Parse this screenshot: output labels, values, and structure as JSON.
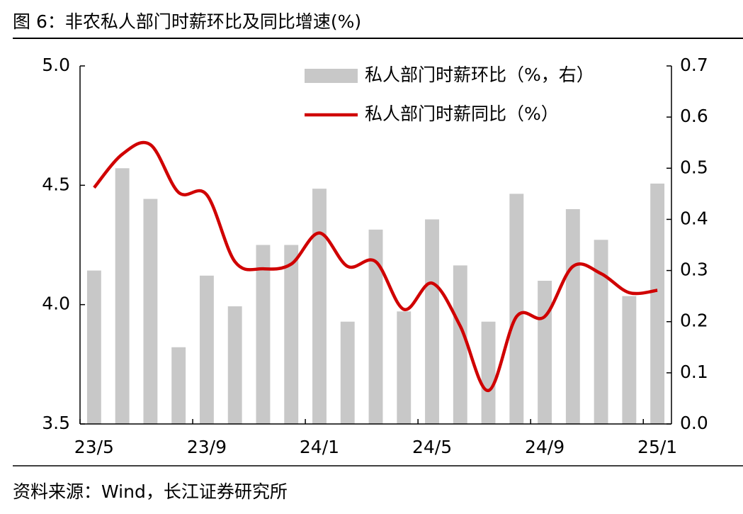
{
  "chart_data": {
    "type": "combo",
    "title": "图 6：非农私人部门时薪环比及同比增速(%)",
    "source": "资料来源：Wind，长江证券研究所",
    "categories": [
      "23/5",
      null,
      null,
      null,
      "23/9",
      null,
      null,
      null,
      "24/1",
      null,
      null,
      null,
      "24/5",
      null,
      null,
      null,
      "24/9",
      null,
      null,
      null,
      "25/1"
    ],
    "series": [
      {
        "name": "私人部门时薪环比（%，右）",
        "type": "bar",
        "axis": "y2",
        "color": "#c8c8c8",
        "values": [
          0.3,
          0.5,
          0.44,
          0.15,
          0.29,
          0.23,
          0.35,
          0.35,
          0.46,
          0.2,
          0.38,
          0.22,
          0.4,
          0.31,
          0.2,
          0.45,
          0.28,
          0.42,
          0.36,
          0.25,
          0.47
        ]
      },
      {
        "name": "私人部门时薪同比（%）",
        "type": "line",
        "axis": "y",
        "color": "#d00000",
        "values": [
          4.49,
          4.63,
          4.67,
          4.47,
          4.46,
          4.18,
          4.15,
          4.17,
          4.3,
          4.16,
          4.18,
          3.98,
          4.09,
          3.91,
          3.64,
          3.95,
          3.95,
          4.16,
          4.13,
          4.05,
          4.06
        ]
      }
    ],
    "ylim": [
      3.5,
      5.0
    ],
    "yticks": [
      3.5,
      {
        "value": 4,
        "label": "4.0"
      },
      4.5,
      {
        "value": 5,
        "label": "5.0"
      }
    ],
    "y2lim": [
      0,
      0.7
    ],
    "y2ticks": [
      {
        "value": 0,
        "label": "0.0"
      },
      0.1,
      0.2,
      0.3,
      0.4,
      0.5,
      0.6,
      0.7
    ],
    "legend": "top-right",
    "grid": false
  }
}
